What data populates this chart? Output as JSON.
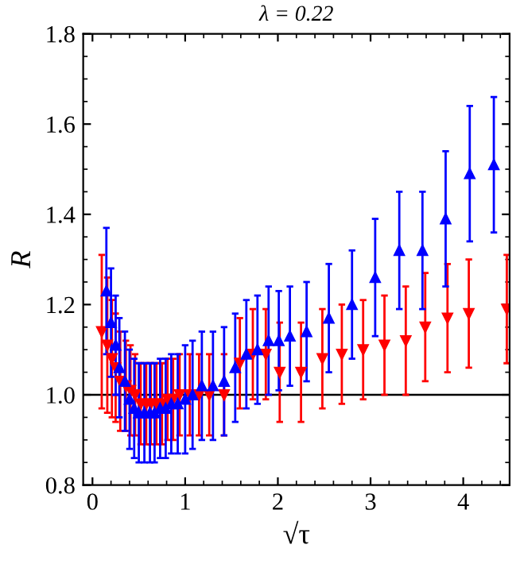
{
  "chart_data": {
    "type": "scatter",
    "title": "λ = 0.22",
    "xlabel": "√τ",
    "ylabel": "R",
    "xlim": [
      -0.1,
      4.5
    ],
    "ylim": [
      0.8,
      1.8
    ],
    "xticks": [
      0,
      1,
      2,
      3,
      4
    ],
    "yticks": [
      {
        "value": 0.8,
        "label": "0.8"
      },
      {
        "value": 1.0,
        "label": "1.0"
      },
      {
        "value": 1.2,
        "label": "1.2"
      },
      {
        "value": 1.4,
        "label": "1.4"
      },
      {
        "value": 1.6,
        "label": "1.6"
      },
      {
        "value": 1.8,
        "label": "1.8"
      }
    ],
    "grid": false,
    "legend": false,
    "ref_lines": [
      {
        "axis": "y",
        "value": 1.0,
        "color": "#000000"
      }
    ],
    "series": [
      {
        "color": "#ff0000",
        "marker": "triangle_down",
        "x": [
          0.1,
          0.16,
          0.21,
          0.25,
          0.3,
          0.36,
          0.41,
          0.46,
          0.52,
          0.58,
          0.63,
          0.69,
          0.75,
          0.81,
          0.87,
          0.94,
          1.05,
          1.15,
          1.26,
          1.42,
          1.59,
          1.73,
          1.87,
          2.02,
          2.25,
          2.48,
          2.69,
          2.92,
          3.15,
          3.38,
          3.59,
          3.83,
          4.06,
          4.47
        ],
        "values": [
          1.14,
          1.11,
          1.08,
          1.06,
          1.03,
          1.02,
          1.01,
          1.0,
          0.98,
          0.98,
          0.98,
          0.98,
          0.98,
          0.99,
          0.99,
          1.0,
          1.0,
          1.0,
          1.0,
          1.0,
          1.07,
          1.09,
          1.09,
          1.05,
          1.05,
          1.08,
          1.09,
          1.1,
          1.11,
          1.12,
          1.15,
          1.17,
          1.18,
          1.19
        ],
        "errors": [
          0.17,
          0.15,
          0.13,
          0.12,
          0.11,
          0.1,
          0.1,
          0.09,
          0.09,
          0.09,
          0.09,
          0.09,
          0.09,
          0.09,
          0.09,
          0.09,
          0.09,
          0.09,
          0.09,
          0.09,
          0.1,
          0.1,
          0.1,
          0.11,
          0.11,
          0.11,
          0.11,
          0.11,
          0.11,
          0.12,
          0.12,
          0.12,
          0.12,
          0.12
        ]
      },
      {
        "color": "#0000ff",
        "marker": "triangle",
        "x": [
          0.15,
          0.2,
          0.25,
          0.29,
          0.35,
          0.4,
          0.45,
          0.5,
          0.56,
          0.62,
          0.67,
          0.73,
          0.79,
          0.85,
          0.92,
          1.0,
          1.08,
          1.18,
          1.3,
          1.42,
          1.54,
          1.66,
          1.78,
          1.9,
          2.01,
          2.13,
          2.31,
          2.55,
          2.8,
          3.05,
          3.31,
          3.56,
          3.81,
          4.07,
          4.33
        ],
        "values": [
          1.23,
          1.16,
          1.11,
          1.06,
          1.03,
          0.99,
          0.97,
          0.96,
          0.96,
          0.96,
          0.96,
          0.97,
          0.97,
          0.98,
          0.98,
          0.99,
          1.0,
          1.02,
          1.02,
          1.03,
          1.06,
          1.09,
          1.1,
          1.12,
          1.12,
          1.13,
          1.14,
          1.17,
          1.2,
          1.26,
          1.32,
          1.32,
          1.39,
          1.49,
          1.51
        ],
        "errors": [
          0.14,
          0.12,
          0.11,
          0.11,
          0.11,
          0.11,
          0.11,
          0.11,
          0.11,
          0.11,
          0.11,
          0.11,
          0.11,
          0.11,
          0.11,
          0.12,
          0.12,
          0.12,
          0.12,
          0.12,
          0.12,
          0.12,
          0.12,
          0.12,
          0.11,
          0.11,
          0.11,
          0.12,
          0.12,
          0.13,
          0.13,
          0.13,
          0.15,
          0.15,
          0.15
        ]
      }
    ]
  }
}
